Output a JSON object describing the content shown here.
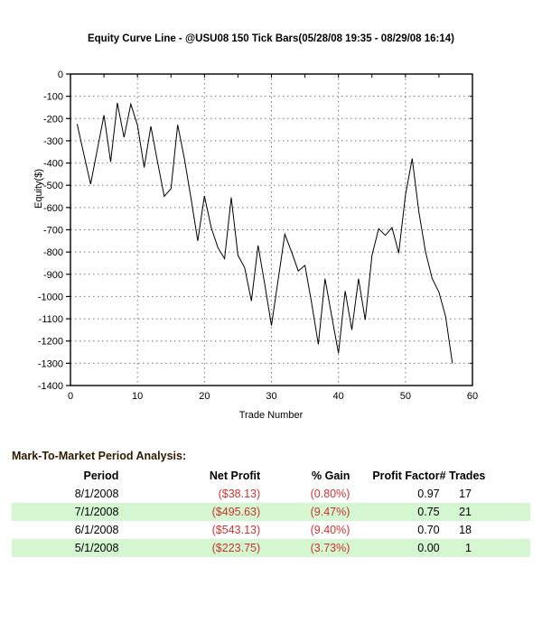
{
  "chart_data": {
    "type": "line",
    "title": "Equity Curve Line - @USU08 150 Tick Bars(05/28/08 19:35 - 08/29/08 16:14)",
    "xlabel": "Trade Number",
    "ylabel": "Equity($)",
    "xlim": [
      0,
      60
    ],
    "ylim": [
      -1400,
      0
    ],
    "x_tick_values": [
      0,
      10,
      20,
      30,
      40,
      50,
      60
    ],
    "x_minor_tick_step": 5,
    "y_tick_values": [
      0,
      -100,
      -200,
      -300,
      -400,
      -500,
      -600,
      -700,
      -800,
      -900,
      -1000,
      -1100,
      -1200,
      -1300,
      -1400
    ],
    "grid": "dotted",
    "grid_color": "#777777",
    "frame_color": "#000000",
    "line_color": "#000000",
    "series": [
      {
        "name": "Equity",
        "x": [
          1,
          2,
          3,
          4,
          5,
          6,
          7,
          8,
          9,
          10,
          11,
          12,
          13,
          14,
          15,
          16,
          17,
          18,
          19,
          20,
          21,
          22,
          23,
          24,
          25,
          26,
          27,
          28,
          29,
          30,
          31,
          32,
          33,
          34,
          35,
          36,
          37,
          38,
          39,
          40,
          41,
          42,
          43,
          44,
          45,
          46,
          47,
          48,
          49,
          50,
          51,
          52,
          53,
          54,
          55,
          56,
          57
        ],
        "y": [
          -225,
          -360,
          -495,
          -340,
          -185,
          -395,
          -130,
          -285,
          -135,
          -230,
          -420,
          -235,
          -395,
          -550,
          -515,
          -228,
          -380,
          -560,
          -750,
          -548,
          -690,
          -780,
          -830,
          -555,
          -815,
          -870,
          -1020,
          -770,
          -945,
          -1130,
          -925,
          -720,
          -800,
          -885,
          -860,
          -1030,
          -1215,
          -920,
          -1090,
          -1255,
          -975,
          -1150,
          -920,
          -1105,
          -815,
          -695,
          -725,
          -690,
          -805,
          -545,
          -380,
          -620,
          -800,
          -920,
          -980,
          -1090,
          -1300
        ]
      }
    ]
  },
  "analysis": {
    "heading": "Mark-To-Market Period Analysis:",
    "columns": [
      "Period",
      "Net Profit",
      "% Gain",
      "Profit Factor",
      "# Trades"
    ],
    "rows": [
      {
        "period": "8/1/2008",
        "net_profit": "($38.13)",
        "gain": "(0.80%)",
        "profit_factor": "0.97",
        "trades": "17",
        "highlight": false
      },
      {
        "period": "7/1/2008",
        "net_profit": "($495.63)",
        "gain": "(9.47%)",
        "profit_factor": "0.75",
        "trades": "21",
        "highlight": true
      },
      {
        "period": "6/1/2008",
        "net_profit": "($543.13)",
        "gain": "(9.40%)",
        "profit_factor": "0.70",
        "trades": "18",
        "highlight": false
      },
      {
        "period": "5/1/2008",
        "net_profit": "($223.75)",
        "gain": "(3.73%)",
        "profit_factor": "0.00",
        "trades": "1",
        "highlight": true
      }
    ],
    "colors": {
      "negative_text": "#cc3333",
      "highlight_row_bg": "#d4f6d1"
    }
  }
}
